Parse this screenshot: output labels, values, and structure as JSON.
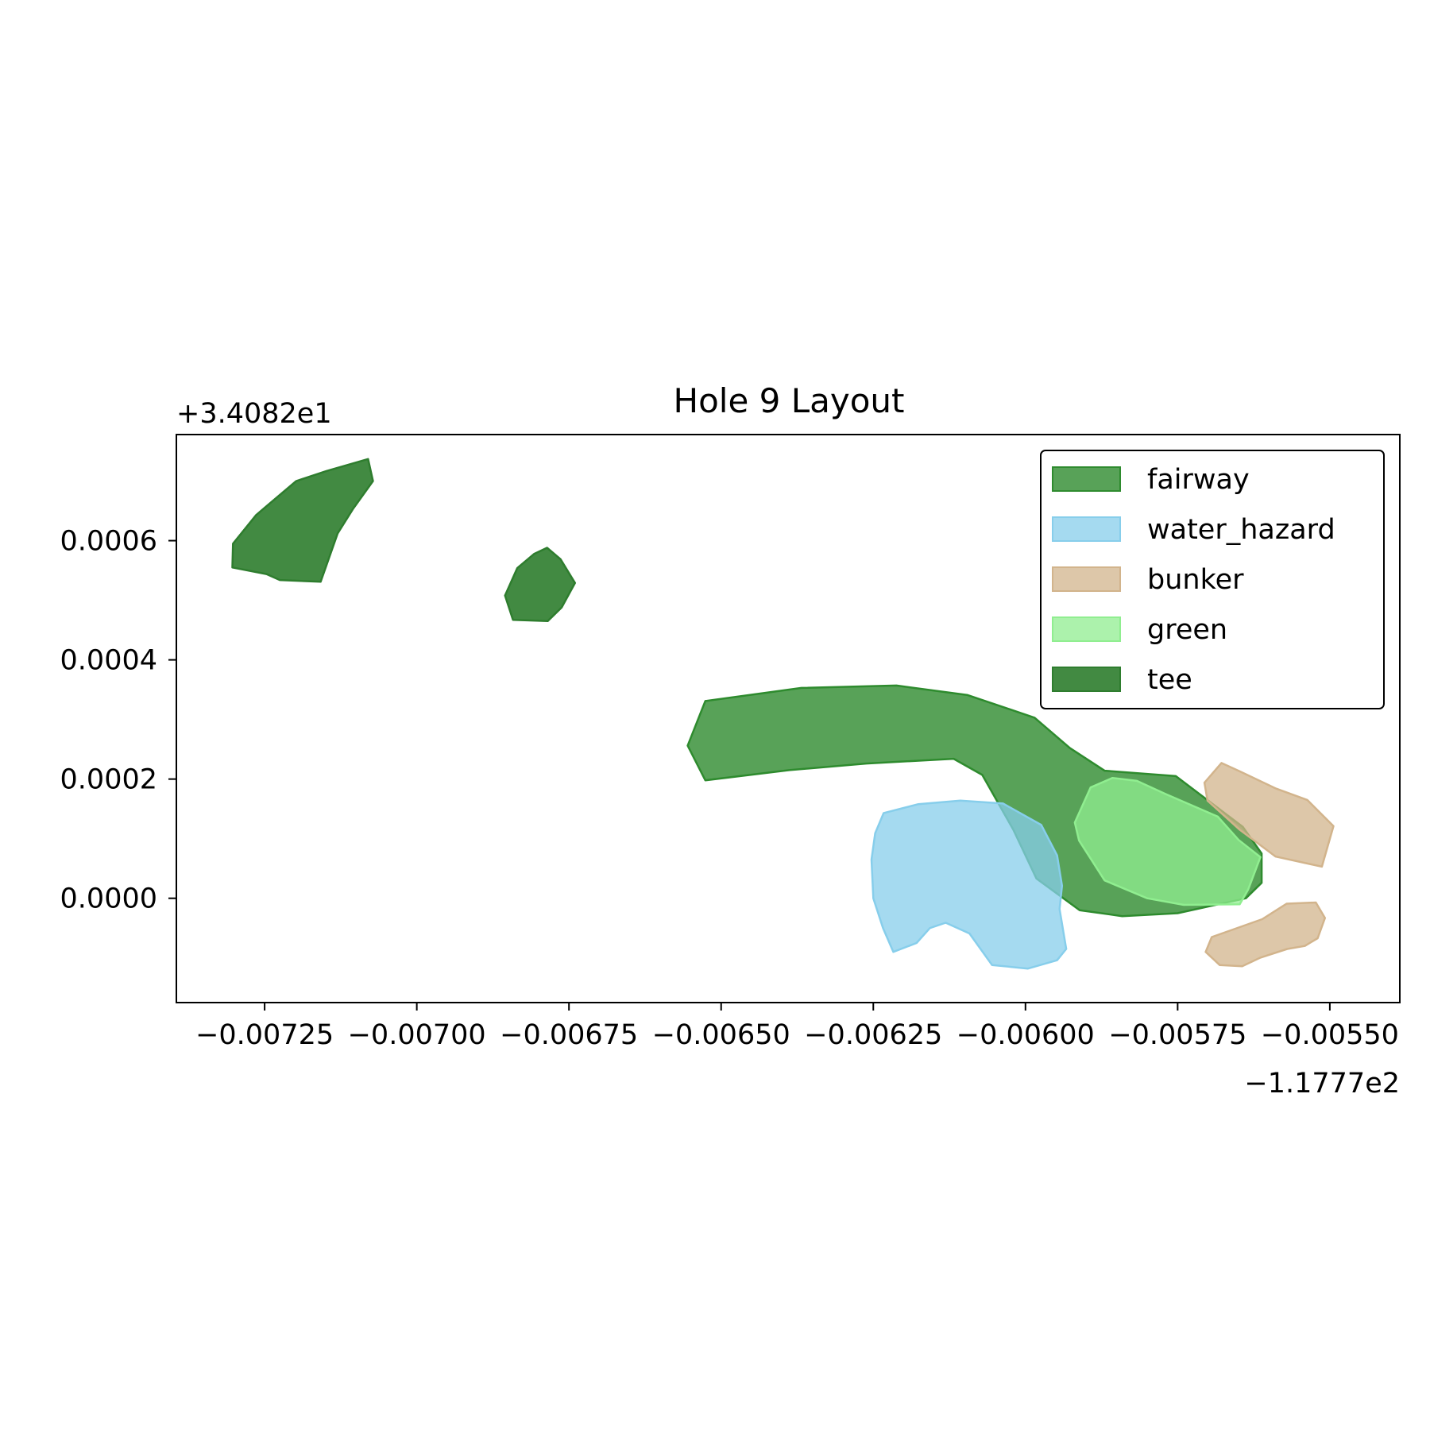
{
  "chart_data": {
    "type": "map",
    "title": "Hole 9 Layout",
    "xlabel": "",
    "ylabel": "",
    "x_offset_label": "−1.1777e2",
    "y_offset_label": "+3.4082e1",
    "xlim": [
      -0.007395,
      -0.005385
    ],
    "ylim": [
      -0.000175,
      0.000778
    ],
    "xticks": [
      -0.00725,
      -0.007,
      -0.00675,
      -0.0065,
      -0.00625,
      -0.006,
      -0.00575,
      -0.0055
    ],
    "xtick_labels": [
      "−0.00725",
      "−0.00700",
      "−0.00675",
      "−0.00650",
      "−0.00625",
      "−0.00600",
      "−0.00575",
      "−0.00550"
    ],
    "yticks": [
      0.0,
      0.0002,
      0.0004,
      0.0006
    ],
    "ytick_labels": [
      "0.0000",
      "0.0002",
      "0.0004",
      "0.0006"
    ],
    "grid": false,
    "legend_position": "upper right",
    "layers": [
      {
        "name": "fairway",
        "fill": "#2e8b2e",
        "fill_opacity": 0.8,
        "stroke": "#2e8b2e",
        "polygons": [
          [
            [
              -0.006526,
              0.000331
            ],
            [
              -0.006368,
              0.000353
            ],
            [
              -0.006212,
              0.000357
            ],
            [
              -0.006095,
              0.000341
            ],
            [
              -0.005985,
              0.000303
            ],
            [
              -0.005927,
              0.000252
            ],
            [
              -0.00587,
              0.000214
            ],
            [
              -0.005753,
              0.000205
            ],
            [
              -0.005643,
              0.00012
            ],
            [
              -0.005612,
              7.5e-05
            ],
            [
              -0.005612,
              2.6e-05
            ],
            [
              -0.005638,
              0.0
            ],
            [
              -0.00575,
              -2.5e-05
            ],
            [
              -0.005841,
              -3e-05
            ],
            [
              -0.005911,
              -2e-05
            ],
            [
              -0.005982,
              3.3e-05
            ],
            [
              -0.00602,
              0.000115
            ],
            [
              -0.006071,
              0.000207
            ],
            [
              -0.006118,
              0.000234
            ],
            [
              -0.006262,
              0.000226
            ],
            [
              -0.006388,
              0.000215
            ],
            [
              -0.006526,
              0.000198
            ],
            [
              -0.006555,
              0.000256
            ]
          ]
        ]
      },
      {
        "name": "water_hazard",
        "fill": "#87ceeb",
        "fill_opacity": 0.75,
        "stroke": "#87ceeb",
        "polygons": [
          [
            [
              -0.006253,
              6.5e-05
            ],
            [
              -0.006247,
              0.000109
            ],
            [
              -0.006233,
              0.000143
            ],
            [
              -0.006176,
              0.000158
            ],
            [
              -0.006107,
              0.000164
            ],
            [
              -0.006037,
              0.000159
            ],
            [
              -0.005974,
              0.000123
            ],
            [
              -0.005948,
              7.2e-05
            ],
            [
              -0.00594,
              2.1e-05
            ],
            [
              -0.005944,
              -1.8e-05
            ],
            [
              -0.005933,
              -8.5e-05
            ],
            [
              -0.005948,
              -0.000104
            ],
            [
              -0.005996,
              -0.000118
            ],
            [
              -0.006055,
              -0.000112
            ],
            [
              -0.006092,
              -5.9e-05
            ],
            [
              -0.006131,
              -4.1e-05
            ],
            [
              -0.006157,
              -5e-05
            ],
            [
              -0.006179,
              -7.5e-05
            ],
            [
              -0.006217,
              -9e-05
            ],
            [
              -0.006234,
              -5e-05
            ],
            [
              -0.00625,
              0.0
            ]
          ]
        ]
      },
      {
        "name": "bunker",
        "fill": "#d2b48c",
        "fill_opacity": 0.75,
        "stroke": "#d2b48c",
        "polygons": [
          [
            [
              -0.005706,
              0.000194
            ],
            [
              -0.005678,
              0.000227
            ],
            [
              -0.005648,
              0.000213
            ],
            [
              -0.005588,
              0.000184
            ],
            [
              -0.005537,
              0.000165
            ],
            [
              -0.005494,
              0.000121
            ],
            [
              -0.005513,
              5.3e-05
            ],
            [
              -0.005589,
              7e-05
            ],
            [
              -0.005648,
              0.000115
            ],
            [
              -0.005701,
              0.000164
            ]
          ],
          [
            [
              -0.005704,
              -9e-05
            ],
            [
              -0.005681,
              -0.000112
            ],
            [
              -0.005644,
              -0.000114
            ],
            [
              -0.005615,
              -0.0001
            ],
            [
              -0.00557,
              -8.5e-05
            ],
            [
              -0.005541,
              -8e-05
            ],
            [
              -0.00552,
              -6.7e-05
            ],
            [
              -0.005508,
              -3.3e-05
            ],
            [
              -0.005523,
              -7e-06
            ],
            [
              -0.005571,
              -9e-06
            ],
            [
              -0.005611,
              -3.5e-05
            ],
            [
              -0.005694,
              -6.5e-05
            ]
          ]
        ]
      },
      {
        "name": "green",
        "fill": "#90ee90",
        "fill_opacity": 0.75,
        "stroke": "#90ee90",
        "polygons": [
          [
            [
              -0.005919,
              0.000127
            ],
            [
              -0.005893,
              0.000186
            ],
            [
              -0.005857,
              0.000202
            ],
            [
              -0.005817,
              0.000197
            ],
            [
              -0.00577,
              0.000175
            ],
            [
              -0.005684,
              0.000137
            ],
            [
              -0.00565,
              9.8e-05
            ],
            [
              -0.005614,
              6.9e-05
            ],
            [
              -0.005634,
              1.5e-05
            ],
            [
              -0.005648,
              -1e-05
            ],
            [
              -0.00574,
              -1.1e-05
            ],
            [
              -0.0058,
              0.0
            ],
            [
              -0.00587,
              3e-05
            ],
            [
              -0.005912,
              9.7e-05
            ]
          ]
        ]
      },
      {
        "name": "tee",
        "fill": "#2e7d2e",
        "fill_opacity": 0.9,
        "stroke": "#2e7d2e",
        "polygons": [
          [
            [
              -0.007302,
              0.000595
            ],
            [
              -0.007264,
              0.000643
            ],
            [
              -0.007241,
              0.000663
            ],
            [
              -0.007198,
              0.0007
            ],
            [
              -0.007148,
              0.000717
            ],
            [
              -0.00708,
              0.000737
            ],
            [
              -0.007072,
              0.0007
            ],
            [
              -0.007105,
              0.000653
            ],
            [
              -0.00713,
              0.000612
            ],
            [
              -0.007158,
              0.000531
            ],
            [
              -0.007225,
              0.000534
            ],
            [
              -0.007247,
              0.000544
            ],
            [
              -0.007303,
              0.000555
            ]
          ],
          [
            [
              -0.006855,
              0.000508
            ],
            [
              -0.006835,
              0.000554
            ],
            [
              -0.006807,
              0.000578
            ],
            [
              -0.006786,
              0.000588
            ],
            [
              -0.006764,
              0.000569
            ],
            [
              -0.00674,
              0.000529
            ],
            [
              -0.006762,
              0.000488
            ],
            [
              -0.006785,
              0.000465
            ],
            [
              -0.006842,
              0.000467
            ]
          ]
        ]
      }
    ]
  }
}
